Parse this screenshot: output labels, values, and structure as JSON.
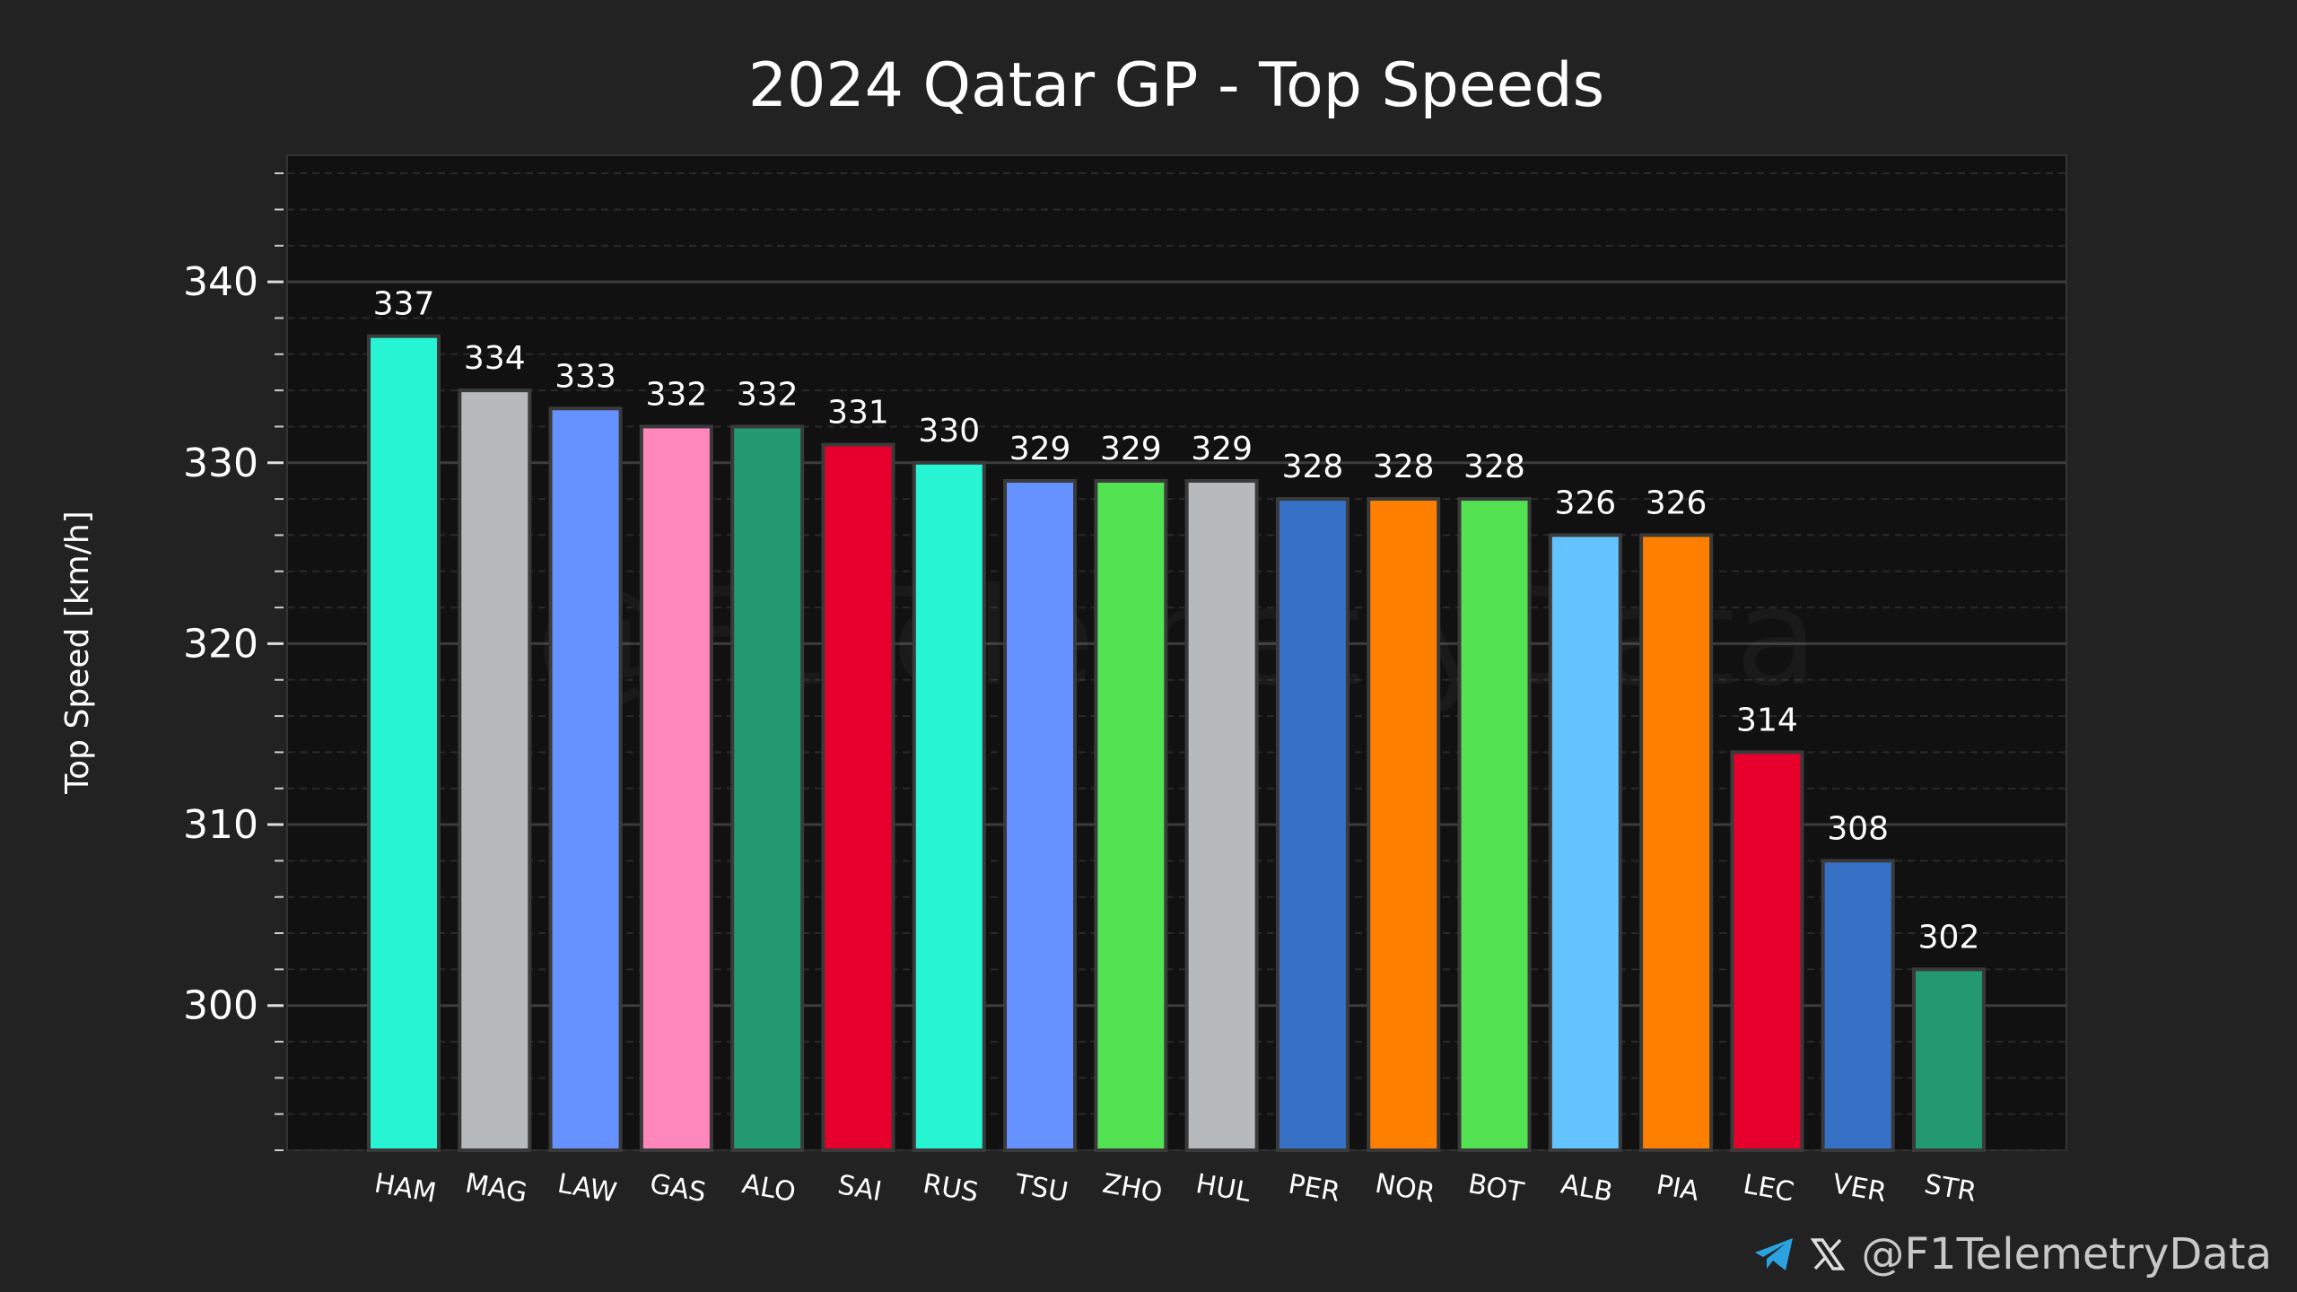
{
  "chart_data": {
    "type": "bar",
    "title": "2024 Qatar GP - Top Speeds",
    "xlabel": "",
    "ylabel": "Top Speed [km/h]",
    "ylim": [
      292,
      347
    ],
    "yticks": [
      300,
      310,
      320,
      330,
      340
    ],
    "grid": true,
    "categories": [
      "HAM",
      "MAG",
      "LAW",
      "GAS",
      "ALO",
      "SAI",
      "RUS",
      "TSU",
      "ZHO",
      "HUL",
      "PER",
      "NOR",
      "BOT",
      "ALB",
      "PIA",
      "LEC",
      "VER",
      "STR"
    ],
    "values": [
      337,
      334,
      333,
      332,
      332,
      331,
      330,
      329,
      329,
      329,
      328,
      328,
      328,
      326,
      326,
      314,
      308,
      302
    ],
    "colors": [
      "#27F4D2",
      "#B6BABD",
      "#6692FF",
      "#FF87BC",
      "#229971",
      "#E8002D",
      "#27F4D2",
      "#6692FF",
      "#52E252",
      "#B6BABD",
      "#3671C6",
      "#FF8000",
      "#52E252",
      "#64C4FF",
      "#FF8000",
      "#E8002D",
      "#3671C6",
      "#229971"
    ]
  },
  "watermark": "@F1TelemetryData",
  "footer": {
    "handle": "@F1TelemetryData",
    "icons": [
      "telegram-icon",
      "x-icon"
    ],
    "telegram_color": "#2AA3E0"
  }
}
